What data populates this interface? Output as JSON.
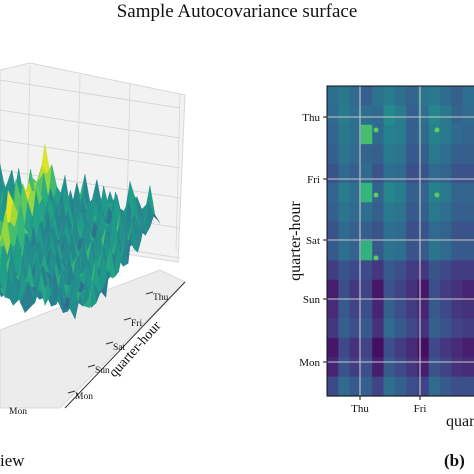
{
  "title": "Sample Autocovariance surface",
  "captions": {
    "left": "iew",
    "right": "(b)"
  },
  "chart_data": [
    {
      "type": "surface",
      "view": "3d",
      "axis_label": "quarter-hour",
      "tick_labels": [
        "Thu",
        "Fri",
        "Sat",
        "Sun",
        "Mon"
      ],
      "far_axis_tick_labels": [
        "Mon"
      ],
      "grid": true,
      "colormap": "viridis"
    },
    {
      "type": "heatmap",
      "ylabel": "quarter-hour",
      "xlabel": "quart",
      "yticks": [
        "Thu",
        "Fri",
        "Sat",
        "Sun",
        "Mon"
      ],
      "xticks": [
        "Thu",
        "Fri"
      ],
      "grid": true,
      "colormap": "viridis",
      "rows": 16,
      "cols": 13,
      "matrix": [
        [
          0.36,
          0.4,
          0.34,
          0.3,
          0.38,
          0.42,
          0.36,
          0.32,
          0.38,
          0.4,
          0.34,
          0.3,
          0.36
        ],
        [
          0.34,
          0.42,
          0.36,
          0.36,
          0.34,
          0.48,
          0.42,
          0.3,
          0.36,
          0.46,
          0.4,
          0.32,
          0.34
        ],
        [
          0.32,
          0.4,
          0.36,
          0.7,
          0.34,
          0.44,
          0.42,
          0.3,
          0.34,
          0.44,
          0.4,
          0.34,
          0.32
        ],
        [
          0.3,
          0.38,
          0.34,
          0.32,
          0.3,
          0.4,
          0.38,
          0.28,
          0.3,
          0.4,
          0.36,
          0.3,
          0.3
        ],
        [
          0.26,
          0.34,
          0.3,
          0.34,
          0.26,
          0.36,
          0.34,
          0.24,
          0.26,
          0.34,
          0.32,
          0.26,
          0.26
        ],
        [
          0.32,
          0.42,
          0.36,
          0.66,
          0.32,
          0.46,
          0.42,
          0.3,
          0.32,
          0.44,
          0.4,
          0.32,
          0.32
        ],
        [
          0.3,
          0.38,
          0.34,
          0.36,
          0.3,
          0.4,
          0.38,
          0.28,
          0.3,
          0.4,
          0.36,
          0.3,
          0.3
        ],
        [
          0.26,
          0.34,
          0.3,
          0.3,
          0.26,
          0.36,
          0.34,
          0.24,
          0.26,
          0.34,
          0.32,
          0.26,
          0.26
        ],
        [
          0.28,
          0.36,
          0.32,
          0.64,
          0.28,
          0.38,
          0.36,
          0.26,
          0.28,
          0.38,
          0.34,
          0.28,
          0.28
        ],
        [
          0.18,
          0.26,
          0.22,
          0.22,
          0.16,
          0.28,
          0.24,
          0.18,
          0.16,
          0.26,
          0.22,
          0.18,
          0.18
        ],
        [
          0.08,
          0.24,
          0.16,
          0.2,
          0.06,
          0.26,
          0.2,
          0.14,
          0.06,
          0.24,
          0.18,
          0.14,
          0.1
        ],
        [
          0.12,
          0.28,
          0.2,
          0.24,
          0.1,
          0.3,
          0.24,
          0.18,
          0.1,
          0.28,
          0.22,
          0.16,
          0.14
        ],
        [
          0.16,
          0.3,
          0.24,
          0.28,
          0.14,
          0.34,
          0.28,
          0.22,
          0.14,
          0.3,
          0.26,
          0.2,
          0.18
        ],
        [
          0.06,
          0.22,
          0.14,
          0.2,
          0.04,
          0.24,
          0.18,
          0.12,
          0.04,
          0.22,
          0.16,
          0.12,
          0.08
        ],
        [
          0.1,
          0.26,
          0.18,
          0.24,
          0.08,
          0.28,
          0.22,
          0.16,
          0.08,
          0.26,
          0.2,
          0.14,
          0.12
        ],
        [
          0.22,
          0.34,
          0.28,
          0.3,
          0.2,
          0.36,
          0.3,
          0.24,
          0.2,
          0.34,
          0.28,
          0.24,
          0.24
        ]
      ]
    }
  ]
}
